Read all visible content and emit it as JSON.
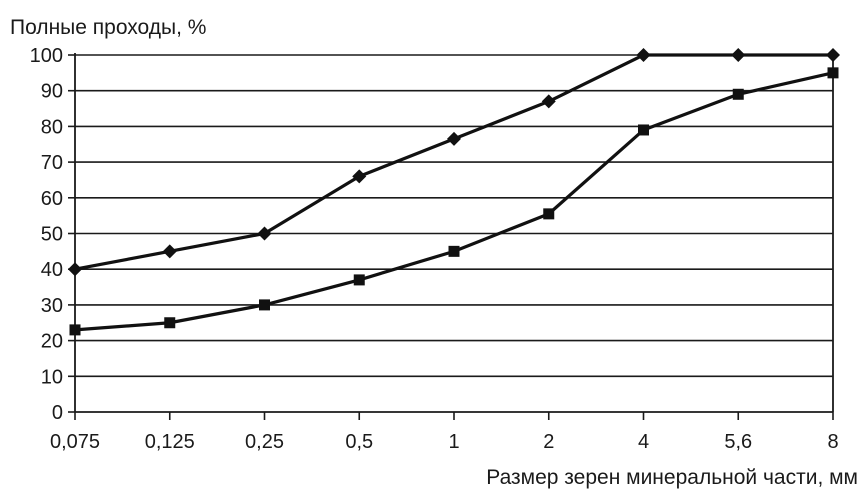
{
  "chart_data": {
    "type": "line",
    "ylabel": "Полные проходы, %",
    "xlabel": "Размер зерен минеральной части, мм",
    "categories": [
      "0,075",
      "0,125",
      "0,25",
      "0,5",
      "1",
      "2",
      "4",
      "5,6",
      "8"
    ],
    "yticks": [
      0,
      10,
      20,
      30,
      40,
      50,
      60,
      70,
      80,
      90,
      100
    ],
    "ylim": [
      0,
      100
    ],
    "grid": "horizontal",
    "legend": "none",
    "series": [
      {
        "marker": "diamond",
        "values": [
          40,
          45,
          50,
          66,
          76.5,
          87,
          100,
          100,
          100
        ]
      },
      {
        "marker": "square",
        "values": [
          23,
          25,
          30,
          37,
          45,
          55.5,
          79,
          89,
          95
        ]
      }
    ]
  }
}
